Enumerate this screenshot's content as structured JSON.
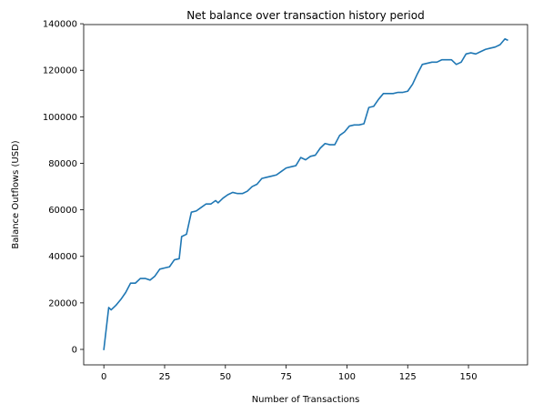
{
  "chart_data": {
    "type": "line",
    "title": "Net balance over transaction history period",
    "xlabel": "Number of Transactions",
    "ylabel": "Balance Outflows (USD)",
    "xlim": [
      -8.3,
      174.3
    ],
    "ylim": [
      -6650,
      139650
    ],
    "x_ticks": [
      0,
      25,
      50,
      75,
      100,
      125,
      150
    ],
    "y_ticks": [
      0,
      20000,
      40000,
      60000,
      80000,
      100000,
      120000,
      140000
    ],
    "grid": false,
    "series": [
      {
        "color": "#1f77b4",
        "x": [
          0,
          2,
          3,
          5,
          7,
          9,
          11,
          13,
          15,
          17,
          19,
          21,
          23,
          25,
          27,
          29,
          31,
          32,
          34,
          36,
          38,
          40,
          42,
          44,
          46,
          47,
          49,
          51,
          53,
          55,
          57,
          59,
          61,
          63,
          65,
          67,
          69,
          71,
          73,
          75,
          77,
          79,
          81,
          83,
          85,
          87,
          89,
          91,
          93,
          95,
          97,
          99,
          101,
          103,
          105,
          107,
          109,
          111,
          113,
          115,
          117,
          119,
          121,
          123,
          125,
          127,
          129,
          131,
          133,
          135,
          137,
          139,
          141,
          143,
          145,
          147,
          149,
          151,
          153,
          155,
          157,
          159,
          161,
          163,
          165,
          166
        ],
        "values": [
          0,
          18000,
          17000,
          19000,
          21500,
          24500,
          28500,
          28500,
          30500,
          30500,
          29800,
          31500,
          34500,
          35000,
          35500,
          38500,
          39000,
          48500,
          49500,
          59000,
          59500,
          61000,
          62500,
          62500,
          64000,
          63000,
          65000,
          66500,
          67500,
          67000,
          67000,
          68000,
          70000,
          71000,
          73500,
          74000,
          74500,
          75000,
          76500,
          78000,
          78500,
          79000,
          82500,
          81500,
          83000,
          83500,
          86500,
          88500,
          88000,
          88000,
          92000,
          93500,
          96000,
          96500,
          96500,
          97000,
          104000,
          104500,
          107500,
          110000,
          110000,
          110000,
          110500,
          110500,
          111000,
          114000,
          118500,
          122500,
          123000,
          123500,
          123500,
          124500,
          124500,
          124500,
          122500,
          123500,
          127000,
          127500,
          127000,
          128000,
          129000,
          129500,
          130000,
          131000,
          133500,
          133000
        ]
      }
    ]
  }
}
